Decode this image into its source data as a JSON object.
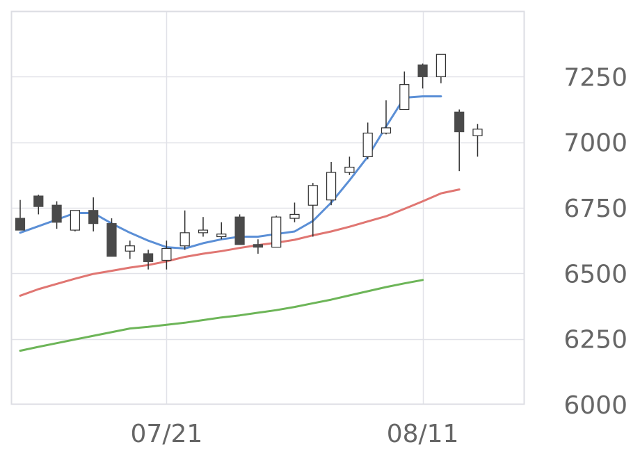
{
  "chart_data": {
    "type": "candlestick",
    "title": "",
    "xlabel": "",
    "ylabel": "",
    "ylim": [
      6000,
      7500
    ],
    "y_ticks": [
      "6000",
      "6250",
      "6500",
      "6750",
      "7000",
      "7250"
    ],
    "x_ticks": [
      {
        "label": "07/21",
        "index": 8
      },
      {
        "label": "08/11",
        "index": 22
      }
    ],
    "grid": true,
    "candles": [
      {
        "o": 6710,
        "h": 6780,
        "l": 6665,
        "c": 6665
      },
      {
        "o": 6795,
        "h": 6800,
        "l": 6725,
        "c": 6755
      },
      {
        "o": 6760,
        "h": 6775,
        "l": 6670,
        "c": 6695
      },
      {
        "o": 6665,
        "h": 6740,
        "l": 6660,
        "c": 6740
      },
      {
        "o": 6740,
        "h": 6790,
        "l": 6660,
        "c": 6690
      },
      {
        "o": 6690,
        "h": 6710,
        "l": 6565,
        "c": 6565
      },
      {
        "o": 6585,
        "h": 6625,
        "l": 6555,
        "c": 6605
      },
      {
        "o": 6575,
        "h": 6590,
        "l": 6515,
        "c": 6545
      },
      {
        "o": 6550,
        "h": 6625,
        "l": 6515,
        "c": 6595
      },
      {
        "o": 6605,
        "h": 6740,
        "l": 6590,
        "c": 6655
      },
      {
        "o": 6655,
        "h": 6715,
        "l": 6640,
        "c": 6665
      },
      {
        "o": 6640,
        "h": 6695,
        "l": 6630,
        "c": 6650
      },
      {
        "o": 6715,
        "h": 6725,
        "l": 6610,
        "c": 6610
      },
      {
        "o": 6610,
        "h": 6630,
        "l": 6575,
        "c": 6600
      },
      {
        "o": 6600,
        "h": 6720,
        "l": 6600,
        "c": 6715
      },
      {
        "o": 6710,
        "h": 6770,
        "l": 6695,
        "c": 6725
      },
      {
        "o": 6760,
        "h": 6845,
        "l": 6640,
        "c": 6835
      },
      {
        "o": 6780,
        "h": 6925,
        "l": 6760,
        "c": 6885
      },
      {
        "o": 6885,
        "h": 6945,
        "l": 6875,
        "c": 6905
      },
      {
        "o": 6945,
        "h": 7075,
        "l": 6935,
        "c": 7035
      },
      {
        "o": 7035,
        "h": 7160,
        "l": 7030,
        "c": 7055
      },
      {
        "o": 7125,
        "h": 7270,
        "l": 7125,
        "c": 7220
      },
      {
        "o": 7295,
        "h": 7300,
        "l": 7205,
        "c": 7250
      },
      {
        "o": 7250,
        "h": 7335,
        "l": 7225,
        "c": 7335
      },
      {
        "o": 7115,
        "h": 7125,
        "l": 6890,
        "c": 7040
      },
      {
        "o": 7025,
        "h": 7070,
        "l": 6945,
        "c": 7050
      }
    ],
    "series": [
      {
        "color": "#5b8fd6",
        "values": [
          6655,
          6680,
          6705,
          6730,
          6730,
          6690,
          6655,
          6625,
          6600,
          6595,
          6615,
          6630,
          6640,
          6640,
          6650,
          6660,
          6700,
          6770,
          6855,
          6945,
          7060,
          7170,
          7175,
          7175
        ]
      },
      {
        "color": "#e07672",
        "values": [
          6415,
          6440,
          6460,
          6480,
          6498,
          6510,
          6522,
          6532,
          6546,
          6563,
          6575,
          6585,
          6597,
          6608,
          6617,
          6628,
          6645,
          6660,
          6678,
          6698,
          6718,
          6746,
          6775,
          6805,
          6820
        ]
      },
      {
        "color": "#6db558",
        "values": [
          6205,
          6220,
          6234,
          6248,
          6262,
          6276,
          6290,
          6296,
          6304,
          6312,
          6322,
          6332,
          6340,
          6350,
          6360,
          6372,
          6386,
          6400,
          6416,
          6432,
          6448,
          6462,
          6475
        ]
      }
    ]
  }
}
